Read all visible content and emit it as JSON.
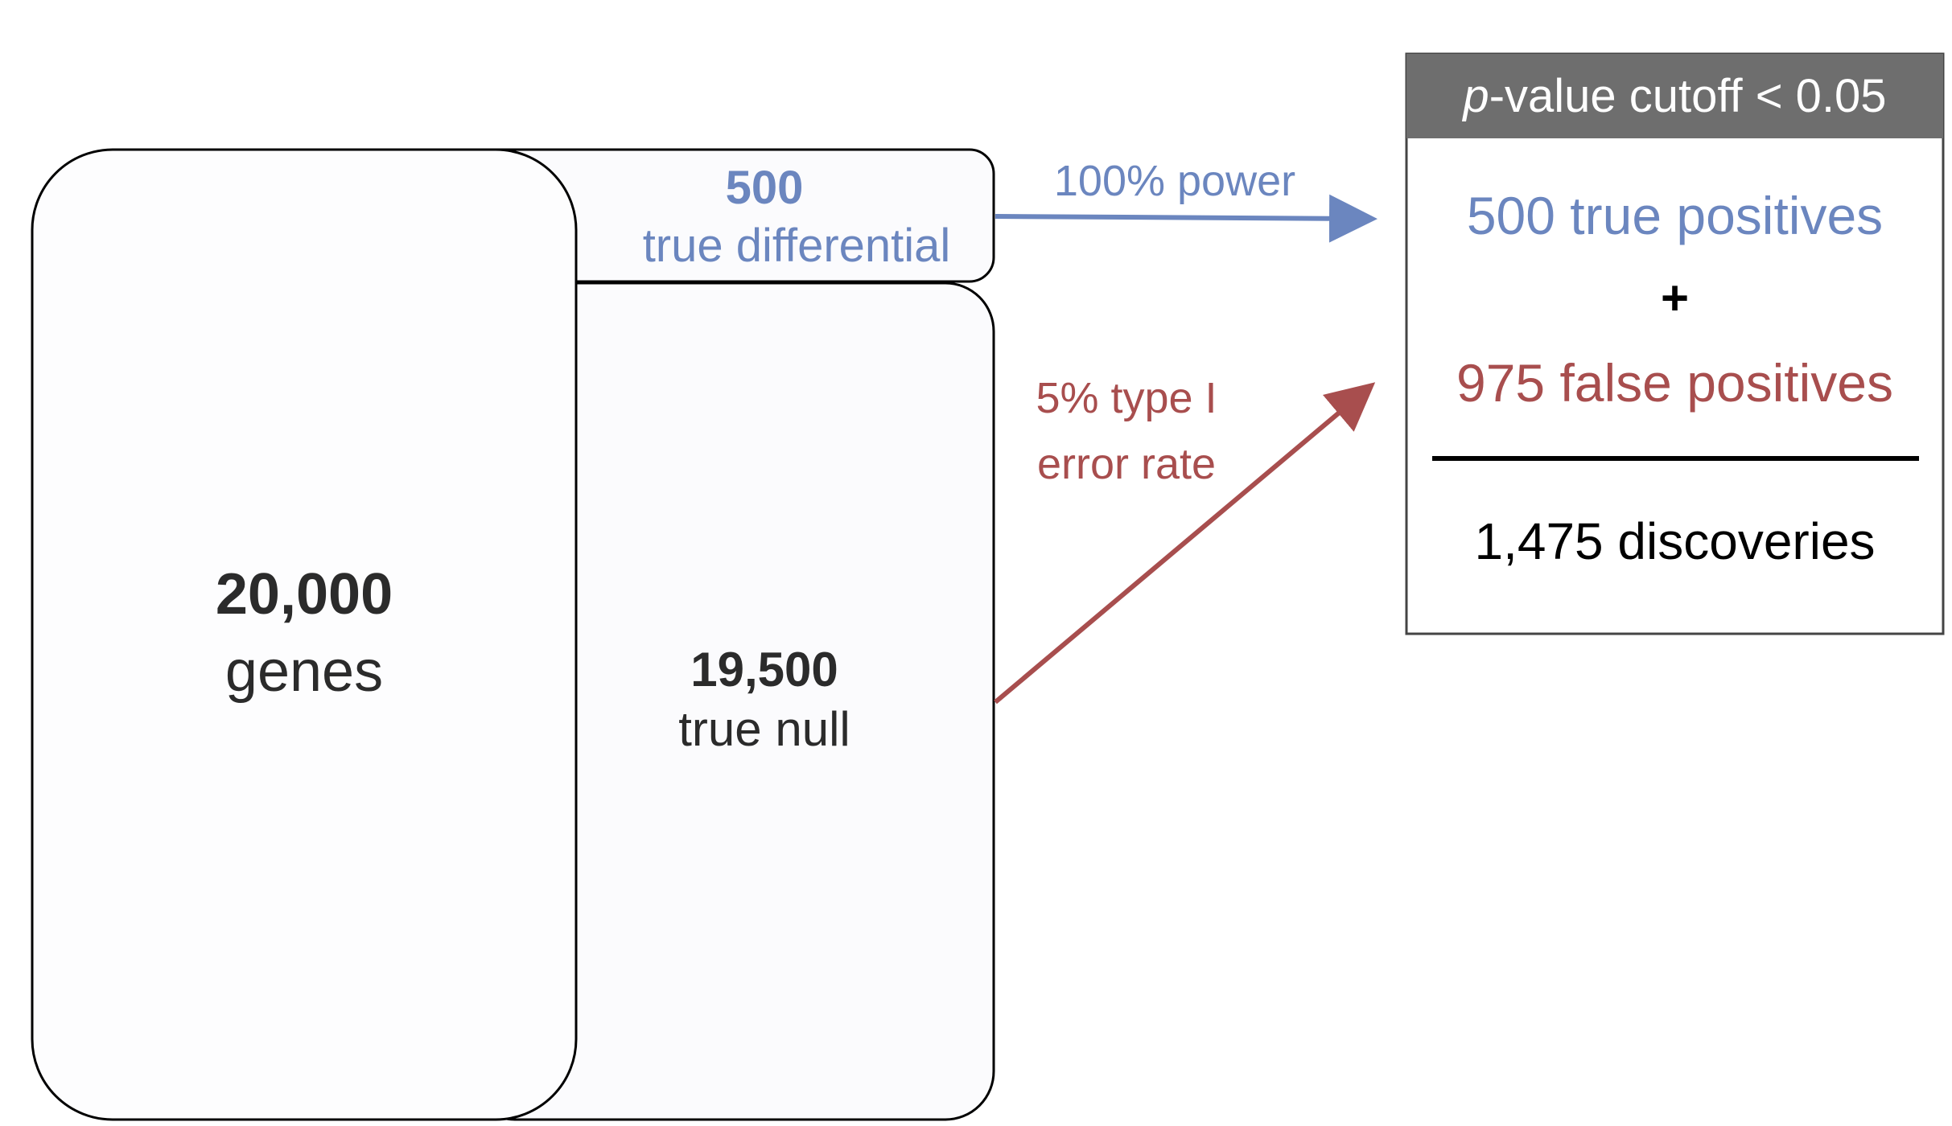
{
  "colors": {
    "blue": "#6b86bf",
    "red": "#a84e4e",
    "header_bg": "#6e6e6e",
    "box_fill": "#fcfcfd"
  },
  "genes": {
    "count": "20,000",
    "label": "genes"
  },
  "true_diff": {
    "count": "500",
    "label": "true differential"
  },
  "true_null": {
    "count": "19,500",
    "label": "true null"
  },
  "arrow_power": {
    "label": "100% power"
  },
  "arrow_error": {
    "line1": "5% type I",
    "line2": "error rate"
  },
  "result": {
    "header_italic": "p",
    "header_rest": "-value cutoff < 0.05",
    "true_positives": "500 true positives",
    "plus": "+",
    "false_positives": "975 false positives",
    "discoveries": "1,475 discoveries"
  }
}
